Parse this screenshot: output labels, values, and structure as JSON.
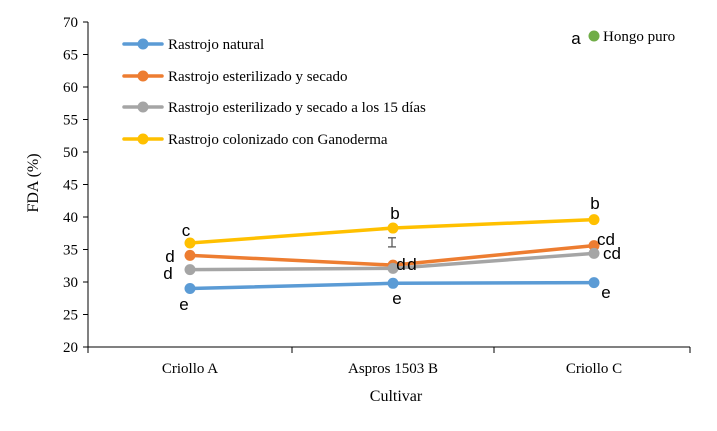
{
  "chart_data": {
    "type": "line",
    "ylabel": "FDA (%)",
    "xlabel": "Cultivar",
    "ylim": [
      20,
      70
    ],
    "yticks": [
      20,
      25,
      30,
      35,
      40,
      45,
      50,
      55,
      60,
      65,
      70
    ],
    "categories": [
      "Criollo A",
      "Aspros 1503 B",
      "Criollo C"
    ],
    "series": [
      {
        "name": "Rastrojo natural",
        "color": "#5b9bd5",
        "values": [
          29.0,
          29.8,
          29.9
        ],
        "letters": [
          "e",
          "e",
          "e"
        ]
      },
      {
        "name": "Rastrojo esterilizado y secado",
        "color": "#ed7d31",
        "values": [
          34.1,
          32.6,
          35.6
        ],
        "letters": [
          "d",
          "d",
          "cd"
        ]
      },
      {
        "name": "Rastrojo esterilizado y secado a los 15 días",
        "color": "#a5a5a5",
        "values": [
          31.9,
          32.1,
          34.4
        ],
        "letters": [
          "d",
          "d",
          "cd"
        ]
      },
      {
        "name": "Rastrojo colonizado con Ganoderma",
        "color": "#ffc000",
        "values": [
          36.0,
          38.3,
          39.6
        ],
        "letters": [
          "c",
          "b",
          "b"
        ]
      }
    ],
    "extra_legend": {
      "name": "Hongo puro",
      "letter": "a",
      "color": "#70ad47"
    },
    "error_bar": {
      "category": "Aspros 1503 B",
      "low": 35.4,
      "high": 36.8
    }
  }
}
